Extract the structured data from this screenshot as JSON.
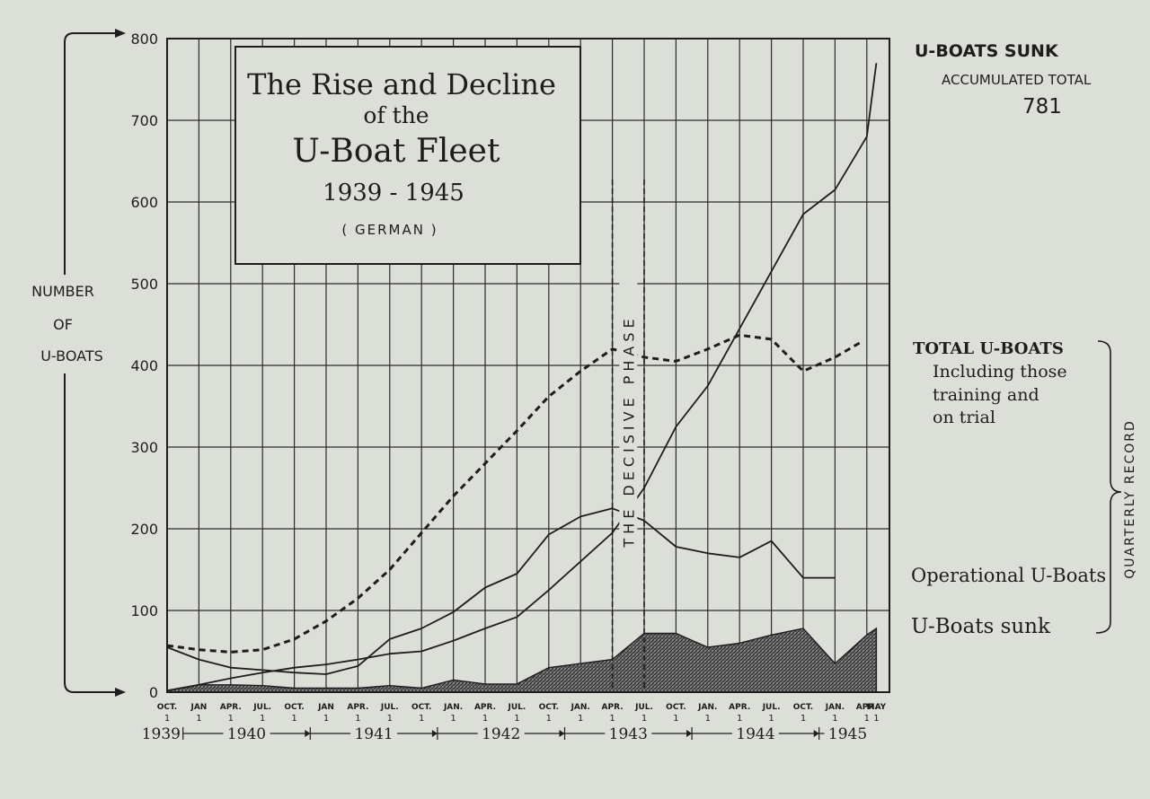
{
  "chart_data": {
    "type": "line",
    "title": "The Rise and Decline",
    "title_line2": "of the",
    "title_line3": "U-Boat Fleet",
    "title_years": "1939 - 1945",
    "title_note": "( GERMAN )",
    "ylabel_lines": [
      "NUMBER",
      "OF",
      "U-BOATS"
    ],
    "ylim": [
      0,
      800
    ],
    "yticks": [
      0,
      100,
      200,
      300,
      400,
      500,
      600,
      700,
      800
    ],
    "xlim": [
      0,
      22.3
    ],
    "xticks": [
      {
        "i": 0,
        "label": "OCT.",
        "day": "1"
      },
      {
        "i": 1,
        "label": "JAN",
        "day": "1"
      },
      {
        "i": 2,
        "label": "APR.",
        "day": "1"
      },
      {
        "i": 3,
        "label": "JUL.",
        "day": "1"
      },
      {
        "i": 4,
        "label": "OCT.",
        "day": "1"
      },
      {
        "i": 5,
        "label": "JAN",
        "day": "1"
      },
      {
        "i": 6,
        "label": "APR.",
        "day": "1"
      },
      {
        "i": 7,
        "label": "JUL.",
        "day": "1"
      },
      {
        "i": 8,
        "label": "OCT.",
        "day": "1"
      },
      {
        "i": 9,
        "label": "JAN.",
        "day": "1"
      },
      {
        "i": 10,
        "label": "APR.",
        "day": "1"
      },
      {
        "i": 11,
        "label": "JUL.",
        "day": "1"
      },
      {
        "i": 12,
        "label": "OCT.",
        "day": "1"
      },
      {
        "i": 13,
        "label": "JAN.",
        "day": "1"
      },
      {
        "i": 14,
        "label": "APR.",
        "day": "1"
      },
      {
        "i": 15,
        "label": "JUL.",
        "day": "1"
      },
      {
        "i": 16,
        "label": "OCT.",
        "day": "1"
      },
      {
        "i": 17,
        "label": "JAN.",
        "day": "1"
      },
      {
        "i": 18,
        "label": "APR.",
        "day": "1"
      },
      {
        "i": 19,
        "label": "JUL.",
        "day": "1"
      },
      {
        "i": 20,
        "label": "OCT.",
        "day": "1"
      },
      {
        "i": 21,
        "label": "JAN.",
        "day": "1"
      },
      {
        "i": 22,
        "label": "APR.",
        "day": "1"
      },
      {
        "i": 22.3,
        "label": "MAY",
        "day": "1"
      }
    ],
    "year_labels": [
      {
        "label": "1939",
        "from": -0.5,
        "to": 0.5
      },
      {
        "label": "1940",
        "from": 0.5,
        "to": 4.5
      },
      {
        "label": "1941",
        "from": 4.5,
        "to": 8.5
      },
      {
        "label": "1942",
        "from": 8.5,
        "to": 12.5
      },
      {
        "label": "1943",
        "from": 12.5,
        "to": 16.5
      },
      {
        "label": "1944",
        "from": 16.5,
        "to": 20.5
      },
      {
        "label": "1945",
        "from": 20.5,
        "to": 22.3
      }
    ],
    "series": [
      {
        "name": "TOTAL U-BOATS",
        "style": "dashed",
        "points": [
          [
            0,
            57
          ],
          [
            1,
            52
          ],
          [
            2,
            49
          ],
          [
            3,
            52
          ],
          [
            4,
            65
          ],
          [
            5,
            87
          ],
          [
            6,
            115
          ],
          [
            7,
            150
          ],
          [
            8,
            195
          ],
          [
            9,
            240
          ],
          [
            10,
            280
          ],
          [
            11,
            320
          ],
          [
            12,
            362
          ],
          [
            13,
            393
          ],
          [
            14,
            420
          ],
          [
            15,
            410
          ],
          [
            16,
            405
          ],
          [
            17,
            420
          ],
          [
            18,
            437
          ],
          [
            19,
            432
          ],
          [
            20,
            393
          ],
          [
            21,
            410
          ],
          [
            21.8,
            428
          ]
        ]
      },
      {
        "name": "U-BOATS SUNK ACCUMULATED TOTAL",
        "style": "solid",
        "points": [
          [
            0,
            2
          ],
          [
            1,
            9
          ],
          [
            2,
            17
          ],
          [
            3,
            24
          ],
          [
            4,
            30
          ],
          [
            5,
            34
          ],
          [
            6,
            40
          ],
          [
            7,
            47
          ],
          [
            8,
            50
          ],
          [
            9,
            63
          ],
          [
            10,
            78
          ],
          [
            11,
            92
          ],
          [
            12,
            125
          ],
          [
            13,
            160
          ],
          [
            14,
            195
          ],
          [
            15,
            250
          ],
          [
            16,
            325
          ],
          [
            17,
            375
          ],
          [
            18,
            445
          ],
          [
            19,
            515
          ],
          [
            20,
            585
          ],
          [
            21,
            615
          ],
          [
            22,
            680
          ],
          [
            22.3,
            770
          ]
        ]
      },
      {
        "name": "Operational U-Boats",
        "style": "solid",
        "points": [
          [
            0,
            55
          ],
          [
            1,
            40
          ],
          [
            2,
            30
          ],
          [
            3,
            27
          ],
          [
            4,
            24
          ],
          [
            5,
            22
          ],
          [
            6,
            32
          ],
          [
            7,
            65
          ],
          [
            8,
            78
          ],
          [
            9,
            98
          ],
          [
            10,
            128
          ],
          [
            11,
            145
          ],
          [
            12,
            193
          ],
          [
            13,
            215
          ],
          [
            14,
            225
          ],
          [
            15,
            210
          ],
          [
            16,
            178
          ],
          [
            17,
            170
          ],
          [
            18,
            165
          ],
          [
            19,
            185
          ],
          [
            20,
            140
          ],
          [
            21,
            140
          ]
        ]
      },
      {
        "name": "U-Boats sunk",
        "style": "hatched-area",
        "points": [
          [
            0,
            2
          ],
          [
            1,
            9
          ],
          [
            2,
            9
          ],
          [
            3,
            8
          ],
          [
            4,
            5
          ],
          [
            5,
            5
          ],
          [
            6,
            5
          ],
          [
            7,
            8
          ],
          [
            8,
            5
          ],
          [
            9,
            15
          ],
          [
            10,
            10
          ],
          [
            11,
            10
          ],
          [
            12,
            30
          ],
          [
            13,
            35
          ],
          [
            14,
            40
          ],
          [
            15,
            72
          ],
          [
            16,
            72
          ],
          [
            17,
            55
          ],
          [
            18,
            60
          ],
          [
            19,
            70
          ],
          [
            20,
            78
          ],
          [
            21,
            35
          ],
          [
            22,
            70
          ],
          [
            22.3,
            78
          ]
        ]
      }
    ],
    "decisive_phase": {
      "from": 14,
      "to": 15,
      "text": "THE DECISIVE PHASE"
    },
    "right_labels": {
      "sunk_title": "U-BOATS SUNK",
      "sunk_sub": "ACCUMULATED TOTAL",
      "sunk_value": "781",
      "total_title": "TOTAL U-BOATS",
      "total_lines": [
        "Including those",
        "training and",
        "on trial"
      ],
      "operational": "Operational U-Boats",
      "sunk": "U-Boats sunk",
      "quarterly": "QUARTERLY RECORD"
    }
  }
}
